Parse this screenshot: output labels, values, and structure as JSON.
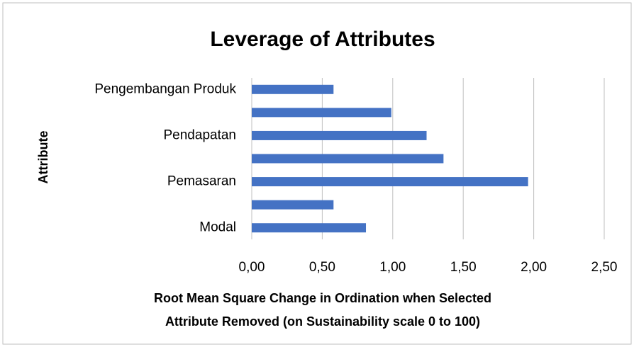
{
  "chart_data": {
    "type": "barh",
    "title": "Leverage of Attributes",
    "ylabel": "Attribute",
    "xlabel": [
      "Root Mean Square Change in Ordination when Selected",
      "Attribute Removed (on Sustainability scale 0 to 100)"
    ],
    "categories": [
      "Pengembangan Produk",
      null,
      "Pendapatan",
      null,
      "Pemasaran",
      null,
      "Modal"
    ],
    "values": [
      0.58,
      0.99,
      1.24,
      1.36,
      1.96,
      0.58,
      0.81
    ],
    "color": "#4472c4",
    "xlim": [
      0,
      2.5
    ],
    "xticks": [
      {
        "value": 0,
        "label": "0,00"
      },
      {
        "value": 0.5,
        "label": "0,50"
      },
      {
        "value": 1,
        "label": "1,00"
      },
      {
        "value": 1.5,
        "label": "1,50"
      },
      {
        "value": 2,
        "label": "2,00"
      },
      {
        "value": 2.5,
        "label": "2,50"
      }
    ],
    "grid": true
  }
}
